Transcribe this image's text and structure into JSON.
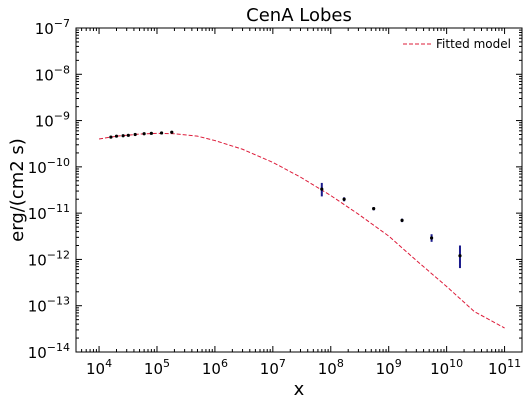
{
  "chart_data": {
    "type": "scatter",
    "title": "CenA Lobes",
    "xlabel": "x",
    "ylabel": "erg/(cm2 s)",
    "xscale": "log",
    "yscale": "log",
    "xlim": [
      4000,
      200000000000
    ],
    "ylim": [
      1e-14,
      1e-07
    ],
    "x_tick_exponents": [
      "4",
      "5",
      "6",
      "7",
      "8",
      "9",
      "10",
      "11"
    ],
    "y_tick_exponents": [
      "-14",
      "-13",
      "-12",
      "-11",
      "-10",
      "-9",
      "-8",
      "-7"
    ],
    "tick_base": "10",
    "legend": {
      "position": "top-right",
      "entries": [
        "Fitted model"
      ]
    },
    "grid": false,
    "colors": {
      "model": "#dd1c3a",
      "points": "#1a1a8c"
    },
    "series": [
      {
        "name": "Fitted model",
        "kind": "line",
        "style": "dashed",
        "x": [
          10000.0,
          20000.0,
          50000.0,
          100000.0,
          200000.0,
          500000.0,
          1000000.0,
          3000000.0,
          10000000.0,
          30000000.0,
          100000000.0,
          300000000.0,
          1000000000.0,
          3000000000.0,
          10000000000.0,
          30000000000.0,
          100000000000.0
        ],
        "y": [
          4e-10,
          4.6e-10,
          5.1e-10,
          5.3e-10,
          5.2e-10,
          4.6e-10,
          3.7e-10,
          2.4e-10,
          1.25e-10,
          6e-11,
          2.4e-11,
          9.5e-12,
          3.2e-12,
          9.5e-13,
          2.6e-13,
          7.5e-14,
          3.3e-14
        ]
      },
      {
        "name": "",
        "kind": "points",
        "points": [
          {
            "x": 16000.0,
            "y": 4.4e-10,
            "ylo": 4.2e-10,
            "yhi": 4.6e-10
          },
          {
            "x": 20000.0,
            "y": 4.6e-10,
            "ylo": 4.4e-10,
            "yhi": 4.8e-10
          },
          {
            "x": 26000.0,
            "y": 4.7e-10,
            "ylo": 4.5e-10,
            "yhi": 4.9e-10
          },
          {
            "x": 32000.0,
            "y": 4.8e-10,
            "ylo": 4.6e-10,
            "yhi": 5e-10
          },
          {
            "x": 42000.0,
            "y": 5e-10,
            "ylo": 4.8e-10,
            "yhi": 5.2e-10
          },
          {
            "x": 60000.0,
            "y": 5.2e-10,
            "ylo": 5e-10,
            "yhi": 5.4e-10
          },
          {
            "x": 80000.0,
            "y": 5.3e-10,
            "ylo": 5.1e-10,
            "yhi": 5.5e-10
          },
          {
            "x": 120000.0,
            "y": 5.4e-10,
            "ylo": 5.2e-10,
            "yhi": 5.6e-10
          },
          {
            "x": 180000.0,
            "y": 5.6e-10,
            "ylo": 5.3e-10,
            "yhi": 5.9e-10
          },
          {
            "x": 70000000.0,
            "y": 3.3e-11,
            "ylo": 2.3e-11,
            "yhi": 4.5e-11
          },
          {
            "x": 170000000.0,
            "y": 2e-11,
            "ylo": 1.8e-11,
            "yhi": 2.2e-11
          },
          {
            "x": 550000000.0,
            "y": 1.25e-11,
            "ylo": 1.15e-11,
            "yhi": 1.35e-11
          },
          {
            "x": 1700000000.0,
            "y": 7e-12,
            "ylo": 6.4e-12,
            "yhi": 7.6e-12
          },
          {
            "x": 5500000000.0,
            "y": 2.9e-12,
            "ylo": 2.4e-12,
            "yhi": 3.5e-12
          },
          {
            "x": 17000000000.0,
            "y": 1.2e-12,
            "ylo": 6.5e-13,
            "yhi": 2e-12
          }
        ]
      }
    ]
  }
}
